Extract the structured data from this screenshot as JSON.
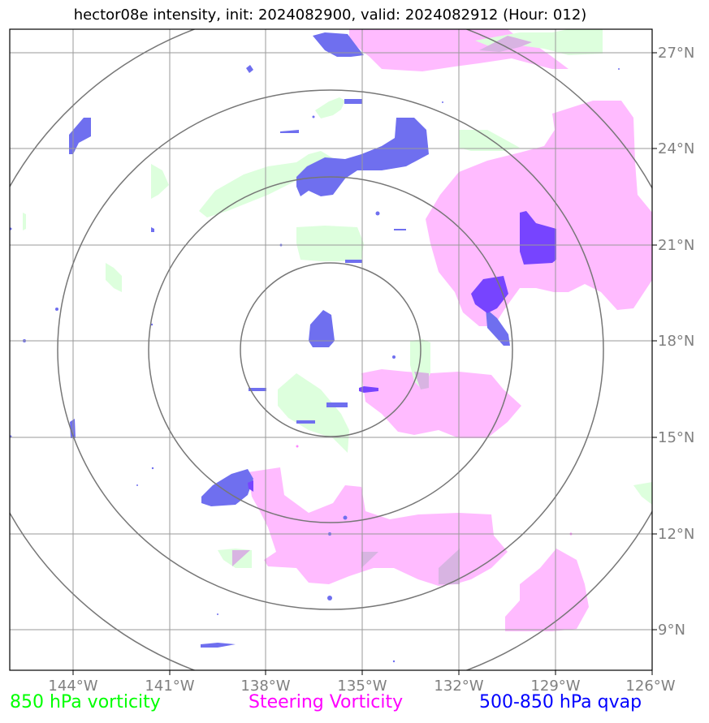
{
  "title": "hector08e intensity, init: 2024082900, valid: 2024082912 (Hour: 012)",
  "longitude_ticks": [
    "144°W",
    "141°W",
    "138°W",
    "135°W",
    "132°W",
    "129°W",
    "126°W"
  ],
  "latitude_ticks": [
    "27°N",
    "24°N",
    "21°N",
    "18°N",
    "15°N",
    "12°N",
    "9°N"
  ],
  "legend": {
    "vorticity_850": {
      "label": "850 hPa vorticity",
      "color": "#00ff00"
    },
    "steering_vorticity": {
      "label": "Steering Vorticity",
      "color": "#ff00ff"
    },
    "qvap": {
      "label": "500-850 hPa qvap",
      "color": "#0000ff"
    }
  },
  "colors": {
    "green_fill": "#ddffdd",
    "magenta_fill": "#ffbbff",
    "blue_fill": "#6f6fef",
    "purple_fill": "#7744ff",
    "grid": "#9a9a9a",
    "rings": "#777777",
    "tick_label": "#808080"
  }
}
